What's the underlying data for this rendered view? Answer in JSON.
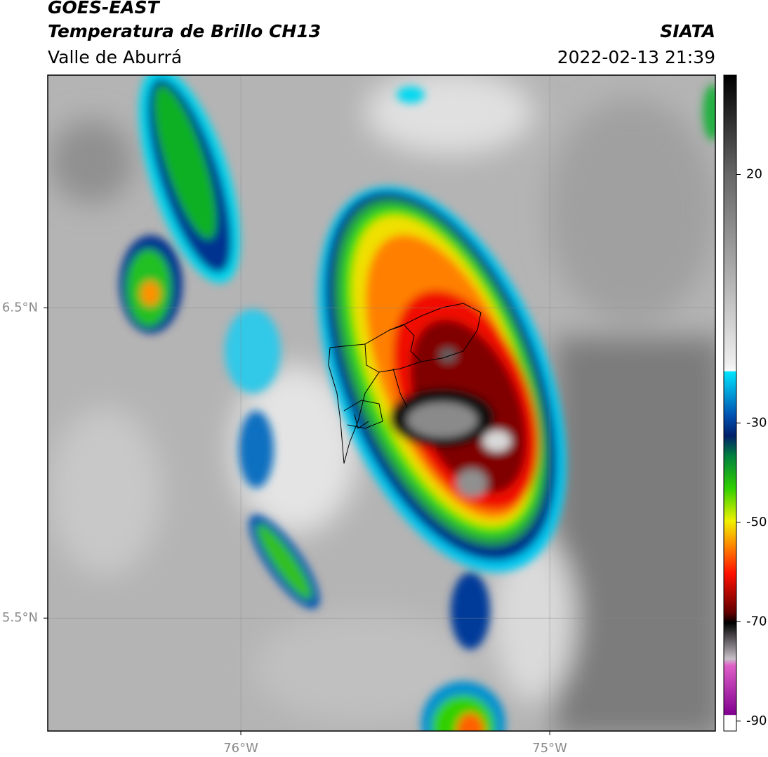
{
  "header": {
    "title": "GOES-EAST",
    "subtitle": "Temperatura de Brillo CH13",
    "region": "Valle de Aburrá",
    "source": "SIATA",
    "timestamp": "2022-02-13 21:39"
  },
  "map": {
    "xlim": [
      -76.625,
      -74.464
    ],
    "ylim": [
      5.136,
      7.25
    ],
    "xticks": [
      {
        "value": -76,
        "label": "76°W"
      },
      {
        "value": -75,
        "label": "75°W"
      }
    ],
    "yticks": [
      {
        "value": 6.5,
        "label": "6.5°N"
      },
      {
        "value": 5.5,
        "label": "5.5°N"
      }
    ]
  },
  "colorbar": {
    "lim": [
      -92,
      40
    ],
    "ticks": [
      20,
      -30,
      -50,
      -70,
      -90
    ]
  }
}
